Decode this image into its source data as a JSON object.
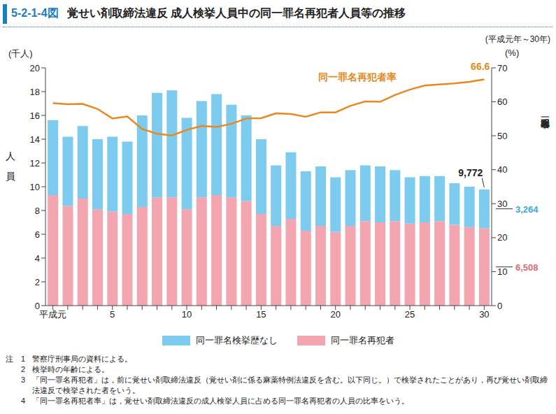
{
  "chart_data": {
    "type": "bar",
    "figure_label": "5-2-1-4図",
    "title": "覚せい剤取締法違反 成人検挙人員中の同一罪名再犯者人員等の推移",
    "period": "(平成元年～30年)",
    "ylabel_unit": "(千人)",
    "ylabel": "人員",
    "y2label_unit": "(%)",
    "y2label": "同一罪名再犯者率",
    "categories": [
      "平成元",
      null,
      null,
      null,
      "5",
      null,
      null,
      null,
      null,
      "10",
      null,
      null,
      null,
      null,
      "15",
      null,
      null,
      null,
      null,
      "20",
      null,
      null,
      null,
      null,
      "25",
      null,
      null,
      null,
      null,
      "30"
    ],
    "stacked": true,
    "series": [
      {
        "name": "同一罪名検挙歴なし",
        "color": "#7dcbee",
        "values": [
          6.3,
          5.8,
          6.1,
          5.9,
          6.3,
          6.1,
          7.7,
          8.8,
          9.0,
          7.7,
          8.1,
          8.5,
          7.8,
          7.2,
          6.3,
          5.1,
          5.6,
          5.0,
          5.0,
          4.6,
          4.7,
          4.7,
          4.7,
          4.3,
          3.9,
          3.9,
          3.8,
          3.5,
          3.4,
          3.264
        ],
        "value_labels": [
          null,
          null,
          null,
          null,
          null,
          null,
          null,
          null,
          null,
          null,
          null,
          null,
          null,
          null,
          null,
          null,
          null,
          null,
          null,
          null,
          null,
          null,
          null,
          null,
          null,
          null,
          null,
          null,
          null,
          "3,264"
        ]
      },
      {
        "name": "同一罪名再犯者",
        "color": "#f3a6b0",
        "values": [
          9.3,
          8.4,
          9.0,
          8.1,
          7.9,
          7.7,
          8.3,
          9.1,
          9.1,
          8.1,
          9.1,
          9.3,
          9.1,
          8.8,
          7.7,
          6.7,
          7.3,
          6.3,
          6.7,
          6.2,
          6.7,
          7.1,
          7.0,
          7.1,
          6.9,
          7.0,
          7.1,
          6.8,
          6.6,
          6.508
        ],
        "value_labels": [
          null,
          null,
          null,
          null,
          null,
          null,
          null,
          null,
          null,
          null,
          null,
          null,
          null,
          null,
          null,
          null,
          null,
          null,
          null,
          null,
          null,
          null,
          null,
          null,
          null,
          null,
          null,
          null,
          null,
          "6,508"
        ]
      },
      {
        "name": "同一罪名再犯者率",
        "type": "line",
        "axis": "y2",
        "color": "#e8891e",
        "values": [
          59.6,
          59.3,
          59.4,
          57.9,
          55.1,
          55.7,
          52.0,
          50.6,
          50.1,
          51.7,
          52.9,
          52.6,
          53.5,
          55.1,
          55.2,
          56.6,
          56.4,
          55.6,
          56.9,
          56.9,
          58.8,
          60.1,
          60.0,
          62.0,
          63.6,
          64.8,
          65.1,
          65.4,
          65.9,
          66.6
        ],
        "value_labels": [
          null,
          null,
          null,
          null,
          null,
          null,
          null,
          null,
          null,
          null,
          null,
          null,
          null,
          null,
          null,
          null,
          null,
          null,
          null,
          null,
          null,
          null,
          null,
          null,
          null,
          null,
          null,
          null,
          null,
          "66.6"
        ]
      }
    ],
    "annotations": [
      {
        "text": "9,772",
        "category": "30",
        "value": 9.772
      }
    ],
    "ylim": [
      0,
      20
    ],
    "yticks": [
      0,
      2,
      4,
      6,
      8,
      10,
      12,
      14,
      16,
      18,
      20
    ],
    "y2lim": [
      0,
      70
    ],
    "y2ticks": [
      0,
      10,
      20,
      30,
      40,
      50,
      60,
      70
    ],
    "grid": false,
    "notes_heading": "注",
    "notes": [
      {
        "number": 1,
        "text": "警察庁刑事局の資料による。"
      },
      {
        "number": 2,
        "text": "検挙時の年齢による。"
      },
      {
        "number": 3,
        "text": "「同一罪名再犯者」は，前に覚せい剤取締法違反（覚せい剤に係る麻薬特例法違反を含む。以下同じ。）で検挙されたことがあり，再び覚せい剤取締法違反で検挙された者をいう。"
      },
      {
        "number": 4,
        "text": "「同一罪名再犯者率」は，覚せい剤取締法違反の成人検挙人員に占める同一罪名再犯者の人員の比率をいう。"
      }
    ]
  }
}
